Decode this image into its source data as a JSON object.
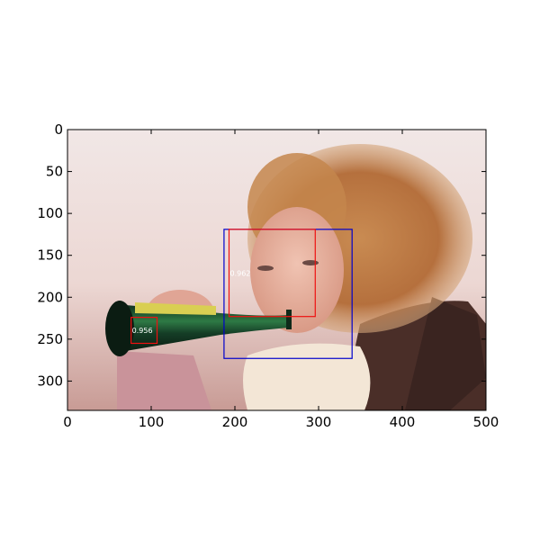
{
  "chart_data": {
    "type": "image-detection-plot",
    "image": {
      "width": 500,
      "height": 335,
      "description_icon": "photo-woman-drinking-from-bottle"
    },
    "xlim": [
      0,
      500
    ],
    "ylim": [
      335,
      0
    ],
    "xticks": [
      0,
      100,
      200,
      300,
      400,
      500
    ],
    "yticks": [
      0,
      50,
      100,
      150,
      200,
      250,
      300
    ],
    "boxes": [
      {
        "name": "person-box",
        "color": "#0000cc",
        "x1": 187,
        "y1": 119,
        "x2": 340,
        "y2": 273,
        "label": ""
      },
      {
        "name": "face-box",
        "color": "#ee1111",
        "x1": 193,
        "y1": 119,
        "x2": 296,
        "y2": 223,
        "label": "0.962"
      },
      {
        "name": "bottle-box",
        "color": "#ee1111",
        "x1": 76,
        "y1": 224,
        "x2": 107,
        "y2": 255,
        "label": "0.956"
      }
    ]
  }
}
